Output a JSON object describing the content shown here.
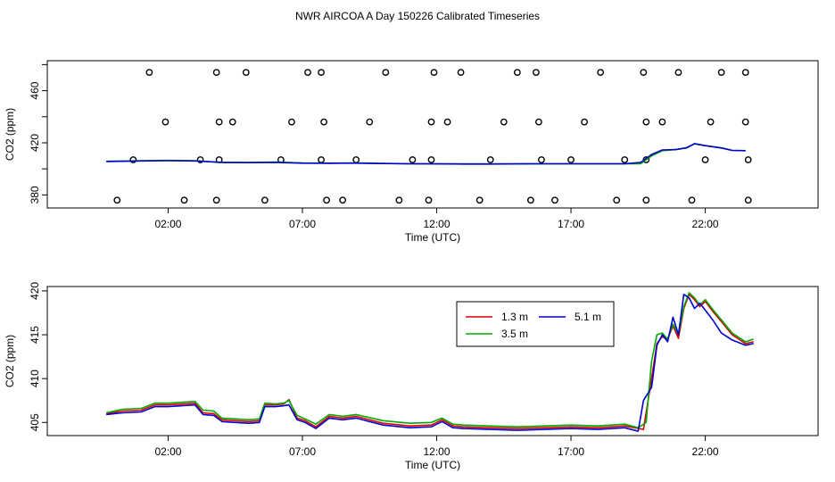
{
  "title": "NWR AIRCOA A  Day 150226  Calibrated Timeseries",
  "chart_data": [
    {
      "type": "scatter+line",
      "xlabel": "Time (UTC)",
      "ylabel": "CO2 (ppm)",
      "xlim": [
        -2.5,
        26.2
      ],
      "ylim": [
        370,
        483
      ],
      "x_ticks": [
        2,
        7,
        12,
        17,
        22
      ],
      "x_tick_labels": [
        "02:00",
        "07:00",
        "12:00",
        "17:00",
        "22:00"
      ],
      "y_ticks": [
        380,
        420,
        460
      ],
      "y_minor_ticks": [
        400,
        440,
        480
      ],
      "y_tick_labels": [
        "380",
        "420",
        "460"
      ],
      "grid": false,
      "line_colors": [
        "#00aa00",
        "#0000cc"
      ],
      "flag_points": {
        "marker": "open-circle",
        "x": [
          0.1,
          0.7,
          1.3,
          1.9,
          2.6,
          3.2,
          3.8,
          3.9,
          3.8,
          3.9,
          4.4,
          4.9,
          5.6,
          6.2,
          6.6,
          7.2,
          7.7,
          7.7,
          7.8,
          7.9,
          8.5,
          9.0,
          9.5,
          10.1,
          10.6,
          11.1,
          11.7,
          11.8,
          11.8,
          11.9,
          12.4,
          12.9,
          13.6,
          14.0,
          14.5,
          15.0,
          15.7,
          15.8,
          15.5,
          15.9,
          16.4,
          17.0,
          17.5,
          18.1,
          18.7,
          19.0,
          19.8,
          19.8,
          19.7,
          19.8,
          20.4,
          21.0,
          21.5,
          22.0,
          22.2,
          22.6,
          23.5,
          23.5,
          23.6,
          23.6
        ],
        "y": [
          376,
          407,
          474,
          436,
          376,
          407,
          376,
          407,
          474,
          436,
          436,
          474,
          376,
          407,
          436,
          474,
          407,
          474,
          436,
          376,
          376,
          407,
          436,
          474,
          376,
          407,
          376,
          407,
          436,
          474,
          436,
          474,
          376,
          407,
          436,
          474,
          474,
          436,
          376,
          407,
          376,
          407,
          436,
          474,
          376,
          407,
          376,
          407,
          474,
          436,
          436,
          474,
          376,
          407,
          436,
          474,
          474,
          436,
          376,
          407
        ]
      },
      "series": [
        {
          "x": [
            -0.3,
            0.5,
            1.0,
            2.0,
            3.0,
            4.0,
            5.0,
            6.0,
            7.0,
            8.0,
            9.0,
            10.0,
            11.0,
            12.0,
            13.0,
            14.0,
            15.0,
            16.0,
            17.0,
            18.0,
            19.0,
            19.6,
            19.8,
            20.0,
            20.4,
            20.9,
            21.3,
            21.6,
            22.0,
            22.6,
            23.0,
            23.5
          ],
          "y": [
            405.8,
            406.0,
            406.2,
            406.5,
            406.3,
            405.0,
            404.9,
            405.2,
            404.5,
            404.4,
            404.5,
            404.2,
            404.0,
            403.9,
            403.8,
            403.8,
            403.9,
            404.0,
            404.0,
            404.0,
            404.0,
            404.0,
            407.0,
            410.0,
            414.0,
            414.8,
            416.0,
            419.2,
            417.8,
            416.2,
            414.2,
            414.0
          ]
        },
        {
          "x": [
            -0.3,
            0.5,
            1.0,
            2.0,
            3.0,
            4.0,
            5.0,
            6.0,
            7.0,
            8.0,
            9.0,
            10.0,
            11.0,
            12.0,
            13.0,
            14.0,
            15.0,
            16.0,
            17.0,
            18.0,
            19.0,
            19.6,
            19.8,
            20.0,
            20.4,
            20.9,
            21.3,
            21.6,
            22.0,
            22.6,
            23.0,
            23.5
          ],
          "y": [
            405.7,
            405.9,
            406.1,
            406.3,
            406.1,
            404.9,
            404.8,
            405.0,
            404.4,
            404.3,
            404.4,
            404.1,
            403.9,
            403.8,
            403.7,
            403.7,
            403.8,
            403.9,
            403.9,
            403.9,
            403.9,
            405.0,
            408.0,
            411.0,
            414.5,
            414.8,
            416.2,
            419.4,
            417.8,
            416.0,
            414.2,
            414.0
          ]
        }
      ]
    },
    {
      "type": "line",
      "xlabel": "Time (UTC)",
      "ylabel": "CO2 (ppm)",
      "xlim": [
        -2.5,
        26.2
      ],
      "ylim": [
        403.5,
        420.5
      ],
      "x_ticks": [
        2,
        7,
        12,
        17,
        22
      ],
      "x_tick_labels": [
        "02:00",
        "07:00",
        "12:00",
        "17:00",
        "22:00"
      ],
      "y_ticks": [
        405,
        410,
        415,
        420
      ],
      "y_tick_labels": [
        "405",
        "410",
        "415",
        "420"
      ],
      "grid": false,
      "legend_position": "top-right",
      "series": [
        {
          "name": "1.3 m",
          "color": "#dd0000",
          "x": [
            -0.3,
            0.3,
            1.0,
            1.5,
            2.0,
            3.0,
            3.3,
            3.7,
            4.0,
            4.5,
            5.0,
            5.4,
            5.6,
            6.0,
            6.3,
            6.5,
            6.8,
            7.1,
            7.5,
            8.0,
            8.5,
            9.0,
            10.0,
            11.0,
            11.8,
            12.2,
            12.6,
            13.0,
            14.0,
            15.0,
            16.0,
            17.0,
            18.0,
            19.0,
            19.7,
            20.0,
            20.2,
            20.4,
            20.6,
            20.8,
            21.0,
            21.2,
            21.4,
            21.6,
            21.8,
            22.0,
            22.3,
            22.6,
            23.0,
            23.5,
            23.8
          ],
          "y": [
            406.0,
            406.3,
            406.4,
            407.0,
            407.0,
            407.2,
            406.1,
            406.0,
            405.3,
            405.2,
            405.1,
            405.2,
            407.0,
            407.0,
            407.1,
            407.6,
            405.5,
            405.2,
            404.5,
            405.7,
            405.5,
            405.7,
            404.9,
            404.6,
            404.7,
            405.3,
            404.6,
            404.5,
            404.4,
            404.3,
            404.4,
            404.5,
            404.4,
            404.6,
            404.2,
            410.0,
            414.0,
            414.8,
            414.5,
            416.0,
            414.6,
            418.0,
            419.6,
            419.0,
            418.2,
            418.8,
            417.6,
            416.5,
            415.0,
            414.0,
            414.2
          ]
        },
        {
          "name": "3.5 m",
          "color": "#00aa00",
          "x": [
            -0.3,
            0.3,
            1.0,
            1.5,
            2.0,
            3.0,
            3.3,
            3.7,
            4.0,
            4.5,
            5.0,
            5.4,
            5.6,
            6.0,
            6.3,
            6.5,
            6.8,
            7.1,
            7.5,
            8.0,
            8.5,
            9.0,
            10.0,
            11.0,
            11.8,
            12.2,
            12.6,
            13.0,
            14.0,
            15.0,
            16.0,
            17.0,
            18.0,
            19.0,
            19.5,
            19.8,
            20.0,
            20.2,
            20.4,
            20.6,
            20.8,
            21.0,
            21.2,
            21.4,
            21.6,
            21.8,
            22.0,
            22.3,
            22.6,
            23.0,
            23.5,
            23.8
          ],
          "y": [
            406.1,
            406.5,
            406.6,
            407.2,
            407.2,
            407.4,
            406.4,
            406.3,
            405.5,
            405.4,
            405.3,
            405.4,
            407.2,
            407.1,
            407.2,
            407.5,
            405.8,
            405.4,
            404.8,
            405.9,
            405.7,
            405.9,
            405.2,
            404.9,
            405.0,
            405.5,
            404.8,
            404.7,
            404.6,
            404.5,
            404.6,
            404.7,
            404.6,
            404.8,
            404.4,
            405.0,
            412.0,
            415.0,
            415.2,
            414.5,
            416.2,
            415.0,
            418.2,
            419.8,
            419.2,
            418.4,
            419.0,
            417.8,
            416.7,
            415.2,
            414.2,
            414.5
          ]
        },
        {
          "name": "5.1 m",
          "color": "#0000cc",
          "x": [
            -0.3,
            0.3,
            1.0,
            1.5,
            2.0,
            3.0,
            3.3,
            3.7,
            4.0,
            4.5,
            5.0,
            5.4,
            5.6,
            6.0,
            6.3,
            6.5,
            6.8,
            7.1,
            7.5,
            8.0,
            8.5,
            9.0,
            10.0,
            11.0,
            11.8,
            12.2,
            12.6,
            13.0,
            14.0,
            15.0,
            16.0,
            17.0,
            18.0,
            19.0,
            19.5,
            19.7,
            20.0,
            20.2,
            20.4,
            20.6,
            20.8,
            21.0,
            21.2,
            21.4,
            21.6,
            21.8,
            22.0,
            22.3,
            22.6,
            23.0,
            23.5,
            23.8
          ],
          "y": [
            405.9,
            406.1,
            406.2,
            406.8,
            406.8,
            407.0,
            405.9,
            405.8,
            405.1,
            405.0,
            404.9,
            405.0,
            406.8,
            406.8,
            406.9,
            407.0,
            405.3,
            405.0,
            404.3,
            405.5,
            405.3,
            405.5,
            404.7,
            404.4,
            404.5,
            405.1,
            404.4,
            404.3,
            404.2,
            404.1,
            404.2,
            404.3,
            404.2,
            404.4,
            404.0,
            407.5,
            409.0,
            413.8,
            415.0,
            414.2,
            417.0,
            415.0,
            419.6,
            419.2,
            418.0,
            418.6,
            417.8,
            416.6,
            415.2,
            414.4,
            413.8,
            414.0
          ]
        }
      ]
    }
  ]
}
